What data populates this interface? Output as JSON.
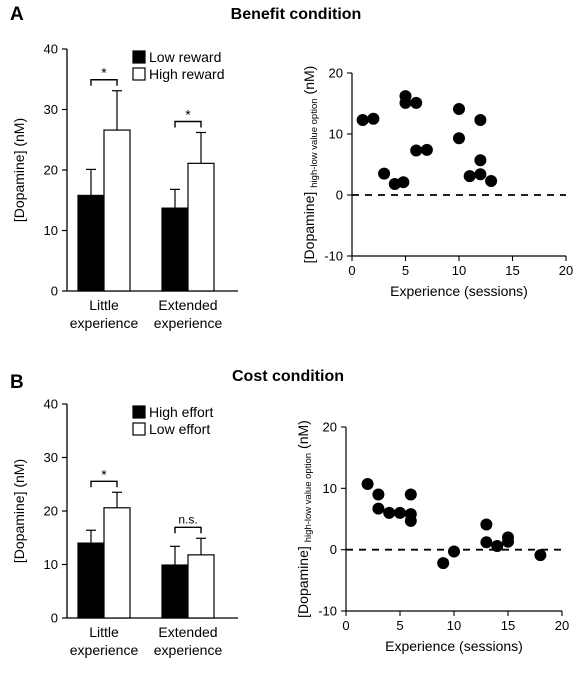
{
  "figure": {
    "panels": [
      {
        "letter": "A",
        "title": "Benefit condition"
      },
      {
        "letter": "B",
        "title": "Cost condition"
      }
    ]
  },
  "chart_data": [
    {
      "type": "bar",
      "panel": "A",
      "ylabel": "[Dopamine] (nM)",
      "ylim": [
        0,
        40
      ],
      "yticks": [
        0,
        10,
        20,
        30,
        40
      ],
      "categories": [
        "Little experience",
        "Extended experience"
      ],
      "category_lines": [
        [
          "Little",
          "experience"
        ],
        [
          "Extended",
          "experience"
        ]
      ],
      "series": [
        {
          "name": "Low reward",
          "color": "#000000",
          "values": [
            15.8,
            13.7
          ],
          "errors": [
            4.3,
            3.1
          ]
        },
        {
          "name": "High reward",
          "color": "#ffffff",
          "values": [
            26.6,
            21.1
          ],
          "errors": [
            6.5,
            5.1
          ]
        }
      ],
      "significance": [
        "*",
        "*"
      ],
      "legend": "top-right",
      "grid": false
    },
    {
      "type": "scatter",
      "panel": "A",
      "xlabel": "Experience (sessions)",
      "ylabel_main": "[Dopamine]",
      "ylabel_sub": "high-low value option",
      "ylabel_unit": "(nM)",
      "xlim": [
        0,
        20
      ],
      "ylim": [
        -10,
        20
      ],
      "xticks": [
        0,
        5,
        10,
        15,
        20
      ],
      "yticks": [
        -10,
        0,
        10,
        20
      ],
      "reference_line": 0,
      "points": [
        [
          1,
          12.3
        ],
        [
          2,
          12.5
        ],
        [
          3,
          3.5
        ],
        [
          4,
          1.8
        ],
        [
          4.8,
          2.1
        ],
        [
          5,
          16.2
        ],
        [
          5,
          15.1
        ],
        [
          6,
          15.1
        ],
        [
          6,
          7.3
        ],
        [
          7,
          7.4
        ],
        [
          10,
          14.1
        ],
        [
          10,
          9.3
        ],
        [
          11,
          3.1
        ],
        [
          12,
          12.3
        ],
        [
          12,
          5.7
        ],
        [
          12,
          3.4
        ],
        [
          13,
          2.3
        ]
      ],
      "grid": false
    },
    {
      "type": "bar",
      "panel": "B",
      "ylabel": "[Dopamine] (nM)",
      "ylim": [
        0,
        40
      ],
      "yticks": [
        0,
        10,
        20,
        30,
        40
      ],
      "categories": [
        "Little experience",
        "Extended experience"
      ],
      "category_lines": [
        [
          "Little",
          "experience"
        ],
        [
          "Extended",
          "experience"
        ]
      ],
      "series": [
        {
          "name": "High effort",
          "color": "#000000",
          "values": [
            14.0,
            9.9
          ],
          "errors": [
            2.4,
            3.5
          ]
        },
        {
          "name": "Low effort",
          "color": "#ffffff",
          "values": [
            20.6,
            11.8
          ],
          "errors": [
            2.9,
            3.1
          ]
        }
      ],
      "significance": [
        "*",
        "n.s."
      ],
      "legend": "top-right",
      "grid": false
    },
    {
      "type": "scatter",
      "panel": "B",
      "xlabel": "Experience (sessions)",
      "ylabel_main": "[Dopamine]",
      "ylabel_sub": "high-low value option",
      "ylabel_unit": "(nM)",
      "xlim": [
        0,
        20
      ],
      "ylim": [
        -10,
        20
      ],
      "xticks": [
        0,
        5,
        10,
        15,
        20
      ],
      "yticks": [
        -10,
        0,
        10,
        20
      ],
      "reference_line": 0,
      "points": [
        [
          2,
          10.7
        ],
        [
          3,
          9.0
        ],
        [
          3,
          6.7
        ],
        [
          4,
          6.0
        ],
        [
          5,
          6.0
        ],
        [
          6,
          9.0
        ],
        [
          6,
          5.8
        ],
        [
          6,
          4.7
        ],
        [
          9,
          -2.2
        ],
        [
          10,
          -0.3
        ],
        [
          13,
          4.1
        ],
        [
          13,
          1.2
        ],
        [
          14,
          0.6
        ],
        [
          15,
          1.3
        ],
        [
          15,
          2.0
        ],
        [
          18,
          -0.9
        ]
      ],
      "grid": false
    }
  ]
}
